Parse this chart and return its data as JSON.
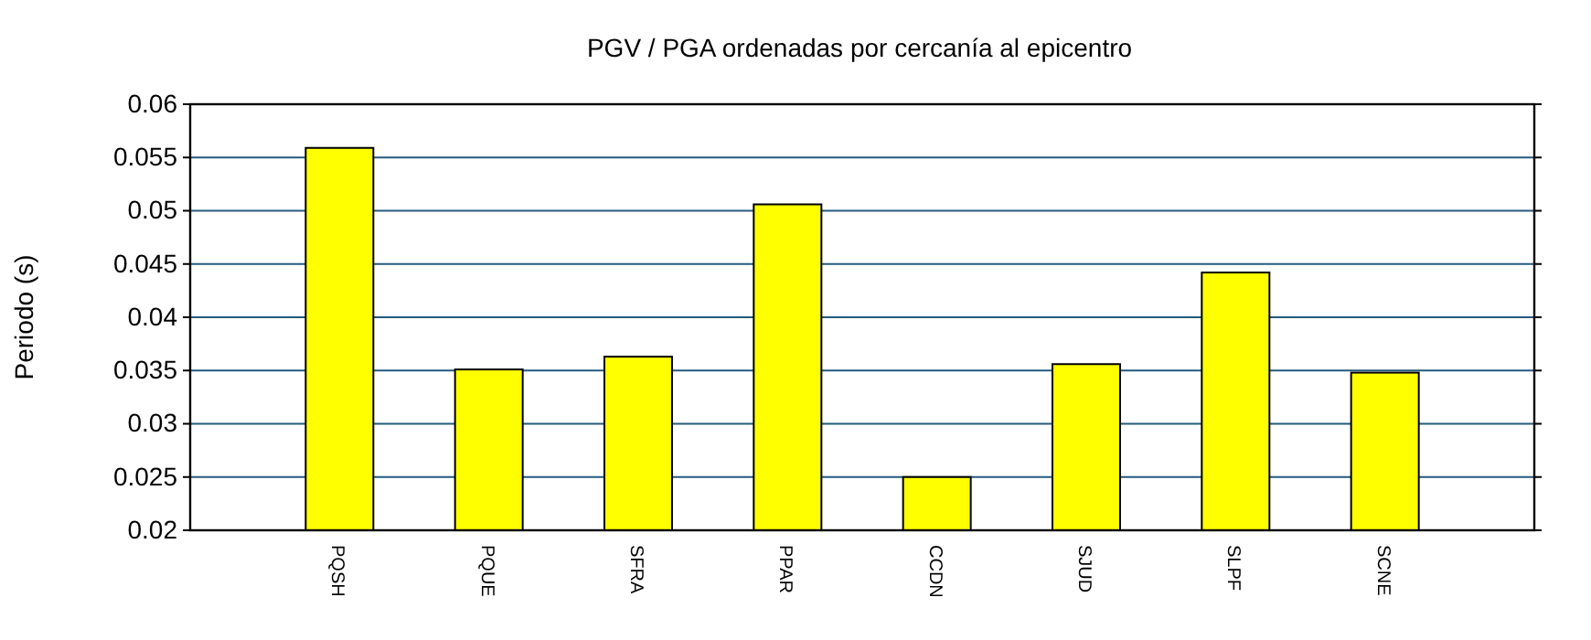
{
  "chart_data": {
    "type": "bar",
    "title": "PGV / PGA ordenadas por cercanía al epicentro",
    "ylabel": "Periodo (s)",
    "categories": [
      "PQSH",
      "PQUE",
      "SFRA",
      "PPAR",
      "CCDN",
      "SJUD",
      "SLPF",
      "SCNE"
    ],
    "values": [
      0.0559,
      0.0351,
      0.0363,
      0.0506,
      0.025,
      0.0356,
      0.0442,
      0.0348
    ],
    "color": "#ffff00",
    "ylim": [
      0.02,
      0.06
    ],
    "yticks": [
      0.02,
      0.025,
      0.03,
      0.035,
      0.04,
      0.045,
      0.05,
      0.055,
      0.06
    ],
    "grid": "y"
  }
}
